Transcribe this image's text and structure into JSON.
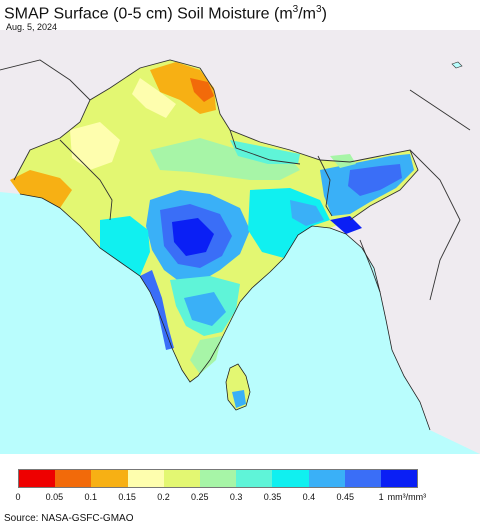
{
  "title": {
    "main": "SMAP Surface (0-5 cm) Soil Moisture (m",
    "sup1": "3",
    "mid": "/m",
    "sup2": "3",
    "end": ")"
  },
  "date": "Aug. 5, 2024",
  "legend": {
    "colors": [
      "#ee0000",
      "#f26a0a",
      "#f7b014",
      "#fefeae",
      "#e3f772",
      "#a7f5a7",
      "#5ff4d8",
      "#10f0f0",
      "#3ab0f7",
      "#3a6ef7",
      "#0a1ff5"
    ],
    "ticks": [
      "0",
      "0.05",
      "0.1",
      "0.15",
      "0.2",
      "0.25",
      "0.3",
      "0.35",
      "0.4",
      "0.45",
      "1"
    ],
    "unit": "mm³/mm³"
  },
  "map": {
    "ocean_color": "#b9fdfd",
    "nodata_land_color": "#efebf0",
    "border_color": "#333333"
  },
  "source": "Source: NASA-GSFC-GMAO"
}
